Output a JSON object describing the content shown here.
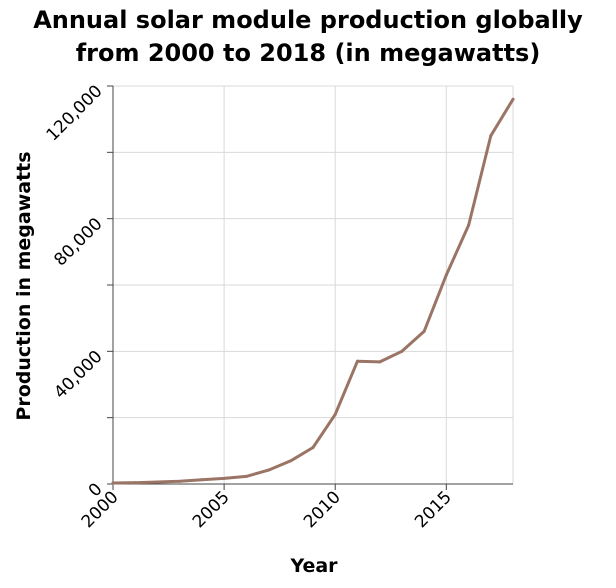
{
  "chart_data": {
    "type": "line",
    "title_lines": [
      "Annual solar module production globally",
      "from 2000 to 2018 (in megawatts)"
    ],
    "xlabel": "Year",
    "ylabel": "Production in megawatts",
    "xlim": [
      2000,
      2018
    ],
    "ylim": [
      0,
      120000
    ],
    "x_ticks": [
      2000,
      2005,
      2010,
      2015
    ],
    "x_tick_labels": [
      "2000",
      "2005",
      "2010",
      "2015"
    ],
    "y_ticks": [
      0,
      20000,
      40000,
      60000,
      80000,
      100000,
      120000
    ],
    "y_tick_labels": [
      "0",
      "",
      "40,000",
      "",
      "80,000",
      "",
      "120,000"
    ],
    "grid": true,
    "line_color": "#9a7464",
    "series": [
      {
        "x": [
          2000,
          2001,
          2002,
          2003,
          2004,
          2005,
          2006,
          2007,
          2008,
          2009,
          2010,
          2011,
          2012,
          2013,
          2014,
          2015,
          2016,
          2017,
          2018
        ],
        "values": [
          300,
          400,
          600,
          800,
          1300,
          1700,
          2300,
          4200,
          7000,
          11000,
          21000,
          37000,
          36800,
          40000,
          46000,
          63000,
          78000,
          105000,
          116000
        ]
      }
    ]
  }
}
